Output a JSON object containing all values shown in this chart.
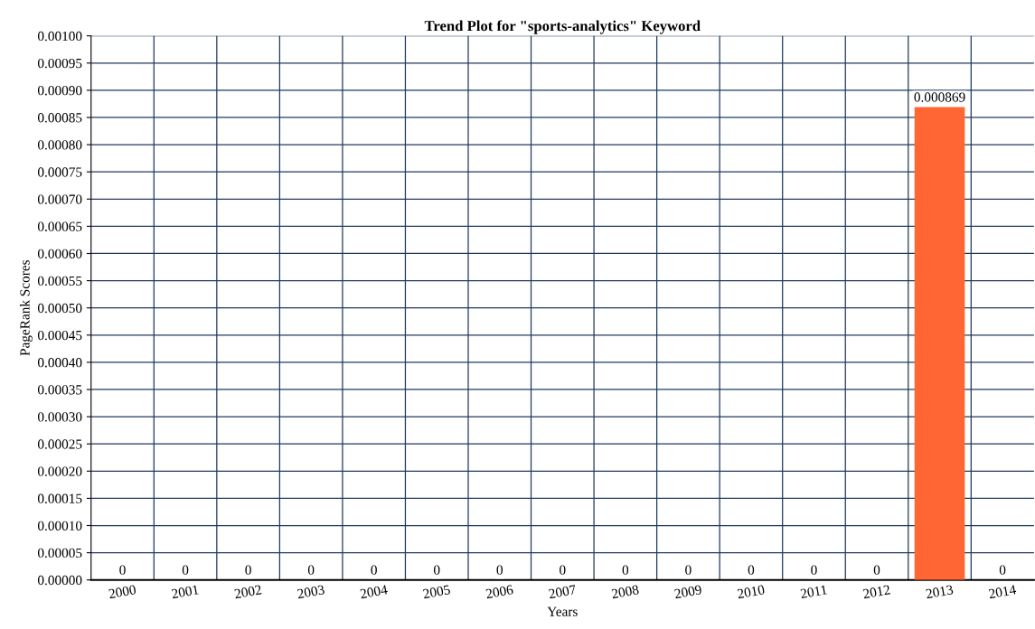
{
  "chart_data": {
    "type": "bar",
    "title": "Trend Plot for \"sports-analytics\" Keyword",
    "xlabel": "Years",
    "ylabel": "PageRank Scores",
    "categories": [
      "2000",
      "2001",
      "2002",
      "2003",
      "2004",
      "2005",
      "2006",
      "2007",
      "2008",
      "2009",
      "2010",
      "2011",
      "2012",
      "2013",
      "2014"
    ],
    "values": [
      0,
      0,
      0,
      0,
      0,
      0,
      0,
      0,
      0,
      0,
      0,
      0,
      0,
      0.000869,
      0
    ],
    "color": "#ff6633",
    "ylim": [
      0,
      0.001
    ],
    "yticks": [
      {
        "value": 0,
        "label": "0.00000"
      },
      {
        "value": 5e-05,
        "label": "0.00005"
      },
      {
        "value": 0.0001,
        "label": "0.00010"
      },
      {
        "value": 0.00015,
        "label": "0.00015"
      },
      {
        "value": 0.0002,
        "label": "0.00020"
      },
      {
        "value": 0.00025,
        "label": "0.00025"
      },
      {
        "value": 0.0003,
        "label": "0.00030"
      },
      {
        "value": 0.00035,
        "label": "0.00035"
      },
      {
        "value": 0.0004,
        "label": "0.00040"
      },
      {
        "value": 0.00045,
        "label": "0.00045"
      },
      {
        "value": 0.0005,
        "label": "0.00050"
      },
      {
        "value": 0.00055,
        "label": "0.00055"
      },
      {
        "value": 0.0006,
        "label": "0.00060"
      },
      {
        "value": 0.00065,
        "label": "0.00065"
      },
      {
        "value": 0.0007,
        "label": "0.00070"
      },
      {
        "value": 0.00075,
        "label": "0.00075"
      },
      {
        "value": 0.0008,
        "label": "0.00080"
      },
      {
        "value": 0.00085,
        "label": "0.00085"
      },
      {
        "value": 0.0009,
        "label": "0.00090"
      },
      {
        "value": 0.00095,
        "label": "0.00095"
      },
      {
        "value": 0.001,
        "label": "0.00100"
      }
    ],
    "grid": true,
    "data_labels": true
  }
}
